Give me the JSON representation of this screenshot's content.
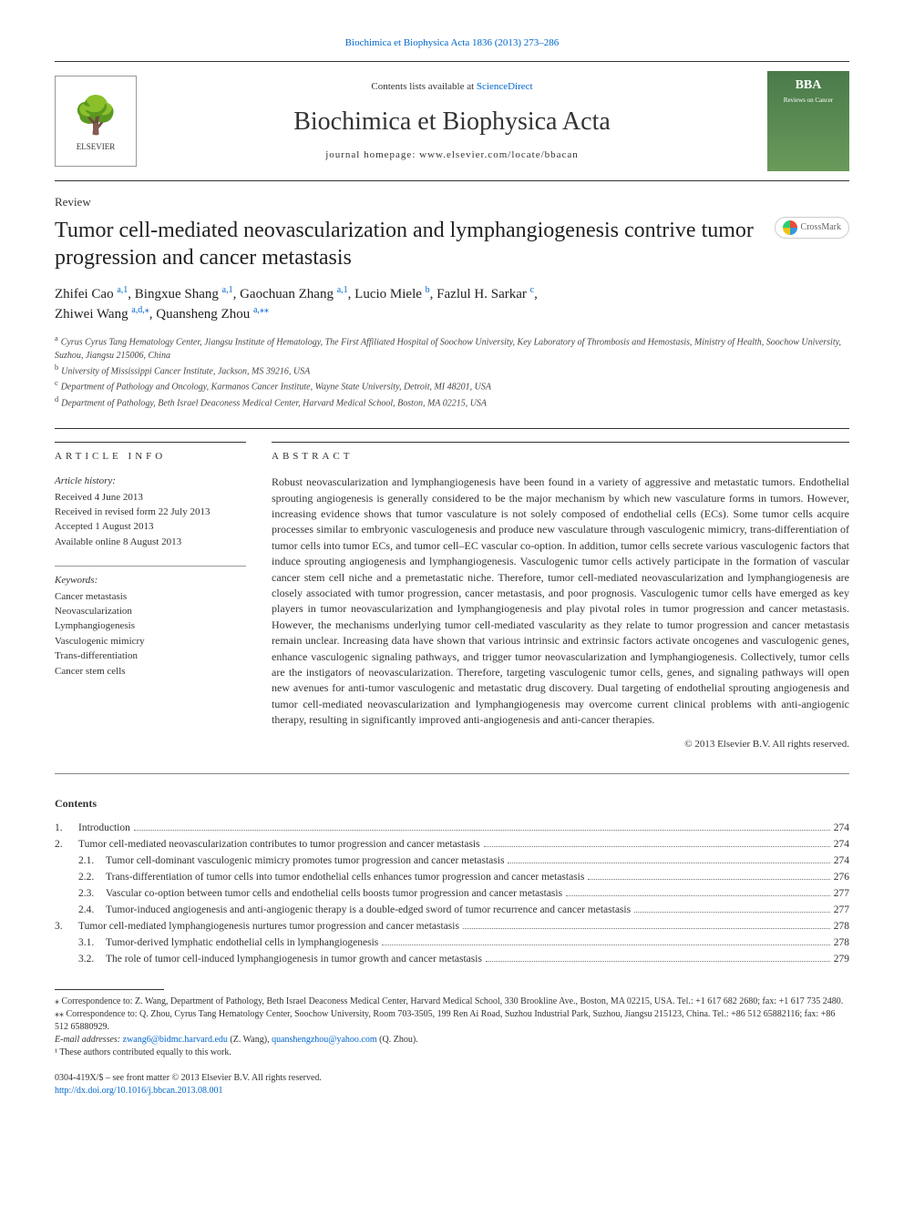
{
  "top_citation": "Biochimica et Biophysica Acta 1836 (2013) 273–286",
  "header": {
    "contents_prefix": "Contents lists available at ",
    "contents_link": "ScienceDirect",
    "journal_name": "Biochimica et Biophysica Acta",
    "homepage_label": "journal homepage: ",
    "homepage_url": "www.elsevier.com/locate/bbacan",
    "elsevier_label": "ELSEVIER",
    "cover_title": "BBA",
    "cover_sub": "Reviews on Cancer"
  },
  "article_type": "Review",
  "title": "Tumor cell-mediated neovascularization and lymphangiogenesis contrive tumor progression and cancer metastasis",
  "crossmark": "CrossMark",
  "authors_line1": "Zhifei Cao ",
  "authors_sup1": "a,1",
  "authors_c1": ", Bingxue Shang ",
  "authors_sup2": "a,1",
  "authors_c2": ", Gaochuan Zhang ",
  "authors_sup3": "a,1",
  "authors_c3": ", Lucio Miele ",
  "authors_sup4": "b",
  "authors_c4": ", Fazlul H. Sarkar ",
  "authors_sup5": "c",
  "authors_c5": ",",
  "authors_line2": "Zhiwei Wang ",
  "authors_sup6": "a,d,",
  "authors_star": "⁎",
  "authors_c6": ", Quansheng Zhou ",
  "authors_sup7": "a,",
  "authors_dstar": "⁎⁎",
  "affiliations": {
    "a": "Cyrus Cyrus Tang Hematology Center, Jiangsu Institute of Hematology, The First Affiliated Hospital of Soochow University, Key Laboratory of Thrombosis and Hemostasis, Ministry of Health, Soochow University, Suzhou, Jiangsu 215006, China",
    "b": "University of Mississippi Cancer Institute, Jackson, MS 39216, USA",
    "c": "Department of Pathology and Oncology, Karmanos Cancer Institute, Wayne State University, Detroit, MI 48201, USA",
    "d": "Department of Pathology, Beth Israel Deaconess Medical Center, Harvard Medical School, Boston, MA 02215, USA"
  },
  "info_heading": "article info",
  "abstract_heading": "abstract",
  "history": {
    "label": "Article history:",
    "received": "Received 4 June 2013",
    "revised": "Received in revised form 22 July 2013",
    "accepted": "Accepted 1 August 2013",
    "online": "Available online 8 August 2013"
  },
  "keywords": {
    "label": "Keywords:",
    "items": [
      "Cancer metastasis",
      "Neovascularization",
      "Lymphangiogenesis",
      "Vasculogenic mimicry",
      "Trans-differentiation",
      "Cancer stem cells"
    ]
  },
  "abstract": "Robust neovascularization and lymphangiogenesis have been found in a variety of aggressive and metastatic tumors. Endothelial sprouting angiogenesis is generally considered to be the major mechanism by which new vasculature forms in tumors. However, increasing evidence shows that tumor vasculature is not solely composed of endothelial cells (ECs). Some tumor cells acquire processes similar to embryonic vasculogenesis and produce new vasculature through vasculogenic mimicry, trans-differentiation of tumor cells into tumor ECs, and tumor cell–EC vascular co-option. In addition, tumor cells secrete various vasculogenic factors that induce sprouting angiogenesis and lymphangiogenesis. Vasculogenic tumor cells actively participate in the formation of vascular cancer stem cell niche and a premetastatic niche. Therefore, tumor cell-mediated neovascularization and lymphangiogenesis are closely associated with tumor progression, cancer metastasis, and poor prognosis. Vasculogenic tumor cells have emerged as key players in tumor neovascularization and lymphangiogenesis and play pivotal roles in tumor progression and cancer metastasis. However, the mechanisms underlying tumor cell-mediated vascularity as they relate to tumor progression and cancer metastasis remain unclear. Increasing data have shown that various intrinsic and extrinsic factors activate oncogenes and vasculogenic genes, enhance vasculogenic signaling pathways, and trigger tumor neovascularization and lymphangiogenesis. Collectively, tumor cells are the instigators of neovascularization. Therefore, targeting vasculogenic tumor cells, genes, and signaling pathways will open new avenues for anti-tumor vasculogenic and metastatic drug discovery. Dual targeting of endothelial sprouting angiogenesis and tumor cell-mediated neovascularization and lymphangiogenesis may overcome current clinical problems with anti-angiogenic therapy, resulting in significantly improved anti-angiogenesis and anti-cancer therapies.",
  "copyright": "© 2013 Elsevier B.V. All rights reserved.",
  "contents_label": "Contents",
  "toc": [
    {
      "num": "1.",
      "sub": "",
      "title": "Introduction",
      "page": "274"
    },
    {
      "num": "2.",
      "sub": "",
      "title": "Tumor cell-mediated neovascularization contributes to tumor progression and cancer metastasis",
      "page": "274"
    },
    {
      "num": "",
      "sub": "2.1.",
      "title": "Tumor cell-dominant vasculogenic mimicry promotes tumor progression and cancer metastasis",
      "page": "274"
    },
    {
      "num": "",
      "sub": "2.2.",
      "title": "Trans-differentiation of tumor cells into tumor endothelial cells enhances tumor progression and cancer metastasis",
      "page": "276"
    },
    {
      "num": "",
      "sub": "2.3.",
      "title": "Vascular co-option between tumor cells and endothelial cells boosts tumor progression and cancer metastasis",
      "page": "277"
    },
    {
      "num": "",
      "sub": "2.4.",
      "title": "Tumor-induced angiogenesis and anti-angiogenic therapy is a double-edged sword of tumor recurrence and cancer metastasis",
      "page": "277"
    },
    {
      "num": "3.",
      "sub": "",
      "title": "Tumor cell-mediated lymphangiogenesis nurtures tumor progression and cancer metastasis",
      "page": "278"
    },
    {
      "num": "",
      "sub": "3.1.",
      "title": "Tumor-derived lymphatic endothelial cells in lymphangiogenesis",
      "page": "278"
    },
    {
      "num": "",
      "sub": "3.2.",
      "title": "The role of tumor cell-induced lymphangiogenesis in tumor growth and cancer metastasis",
      "page": "279"
    }
  ],
  "footnotes": {
    "star": "⁎ Correspondence to: Z. Wang, Department of Pathology, Beth Israel Deaconess Medical Center, Harvard Medical School, 330 Brookline Ave., Boston, MA 02215, USA. Tel.: +1 617 682 2680; fax: +1 617 735 2480.",
    "dstar": "⁎⁎ Correspondence to: Q. Zhou, Cyrus Tang Hematology Center, Soochow University, Room 703-3505, 199 Ren Ai Road, Suzhou Industrial Park, Suzhou, Jiangsu 215123, China. Tel.: +86 512 65882116; fax: +86 512 65880929.",
    "email_label": "E-mail addresses: ",
    "email1": "zwang6@bidmc.harvard.edu",
    "email1_name": " (Z. Wang), ",
    "email2": "quanshengzhou@yahoo.com",
    "email2_name": " (Q. Zhou).",
    "equal": "¹ These authors contributed equally to this work."
  },
  "footer": {
    "issn": "0304-419X/$ – see front matter © 2013 Elsevier B.V. All rights reserved.",
    "doi": "http://dx.doi.org/10.1016/j.bbcan.2013.08.001"
  },
  "colors": {
    "link": "#0066cc",
    "text": "#333333",
    "cover_bg_top": "#4a7a4a",
    "cover_bg_bot": "#6a9a5a"
  }
}
